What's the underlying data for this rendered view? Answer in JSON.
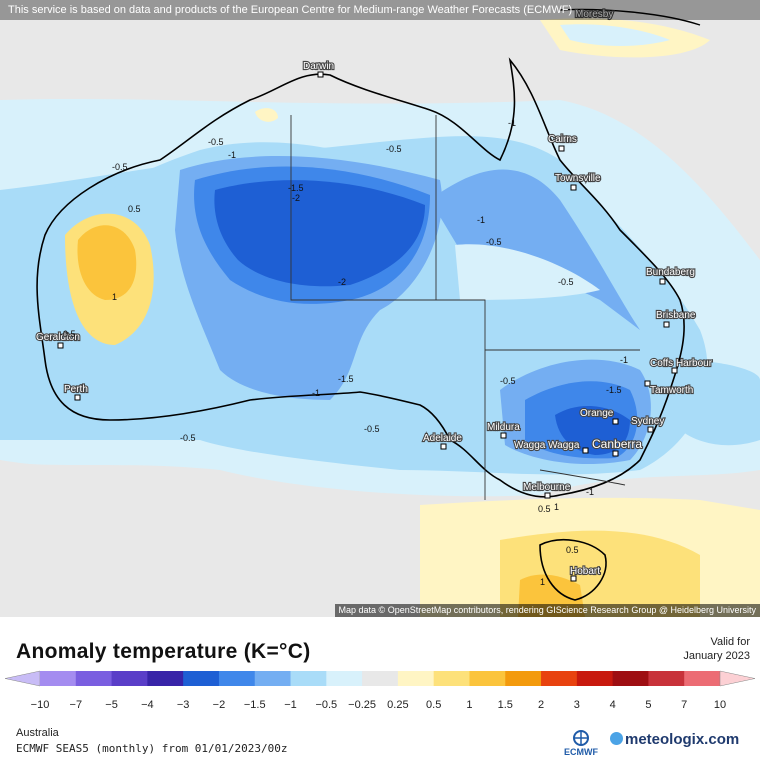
{
  "header": {
    "credit": "This service is based on data and products of the European Centre for Medium-range Weather Forecasts (ECMWF)"
  },
  "map": {
    "attribution": "Map data © OpenStreetMap contributors, rendering GIScience Research Group @ Heidelberg University",
    "cities": [
      {
        "name": "Darwin"
      },
      {
        "name": "Cairns"
      },
      {
        "name": "Townsville"
      },
      {
        "name": "Bundaberg"
      },
      {
        "name": "Brisbane"
      },
      {
        "name": "Coffs Harbour"
      },
      {
        "name": "Tamworth"
      },
      {
        "name": "Sydney"
      },
      {
        "name": "Orange"
      },
      {
        "name": "Canberra"
      },
      {
        "name": "Wagga Wagga"
      },
      {
        "name": "Mildura"
      },
      {
        "name": "Adelaide"
      },
      {
        "name": "Melbourne"
      },
      {
        "name": "Hobart"
      },
      {
        "name": "Perth"
      },
      {
        "name": "Geraldton"
      },
      {
        "name": "Moresby"
      }
    ],
    "contour_labels": [
      "-0.5",
      "-1",
      "-1.5",
      "-2",
      "0.5",
      "1",
      "-0.5",
      "-0.5",
      "-0.5",
      "-1",
      "-1.5",
      "-0.5",
      "-2",
      "-1",
      "-1.5",
      "-0.5",
      "-0.5",
      "-1",
      "0.5",
      "1",
      "-0.5",
      "0.5",
      "1",
      "-1",
      "-0.5",
      "-1"
    ]
  },
  "legend": {
    "title": "Anomaly temperature (K=°C)",
    "valid_for_label": "Valid for",
    "valid_date": "January 2023",
    "ticks": [
      "−10",
      "−7",
      "−5",
      "−4",
      "−3",
      "−2",
      "−1.5",
      "−1",
      "−0.5",
      "−0.25",
      "0.25",
      "0.5",
      "1",
      "1.5",
      "2",
      "3",
      "4",
      "5",
      "7",
      "10"
    ],
    "colors": [
      "#a48cf0",
      "#7a5ee0",
      "#5a3ec8",
      "#3824a8",
      "#1e5fd4",
      "#3f87ea",
      "#74aef2",
      "#a9dcf8",
      "#d8f1fb",
      "#e8e8e8",
      "#fff5c4",
      "#fde17a",
      "#fbc43c",
      "#f39a0d",
      "#e8420f",
      "#c8190e",
      "#9e0e12",
      "#c8323a",
      "#ec6c74",
      "#f8a4aa"
    ],
    "extension_colors": {
      "low": "#c8bcf6",
      "high": "#fcd0d4"
    }
  },
  "footer": {
    "region": "Australia",
    "model": "ECMWF SEAS5 (monthly) from 01/01/2023/00z",
    "ecmwf_logo": "ECMWF",
    "brand": "meteologix.com"
  }
}
